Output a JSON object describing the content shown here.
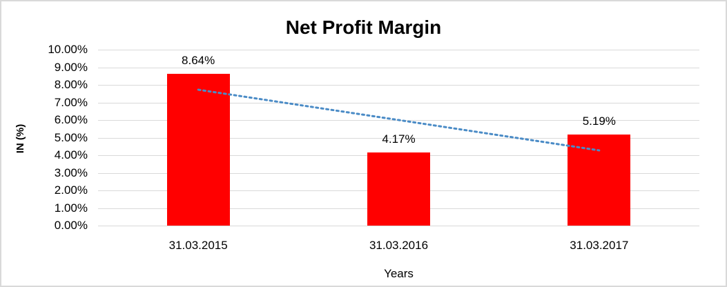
{
  "chart_data": {
    "type": "bar",
    "title": "Net Profit Margin",
    "xlabel": "Years",
    "ylabel": "IN (%)",
    "categories": [
      "31.03.2015",
      "31.03.2016",
      "31.03.2017"
    ],
    "values": [
      8.64,
      4.17,
      5.19
    ],
    "data_labels": [
      "8.64%",
      "4.17%",
      "5.19%"
    ],
    "ylim": [
      0,
      10
    ],
    "ytick_step": 1,
    "ytick_labels": [
      "0.00%",
      "1.00%",
      "2.00%",
      "3.00%",
      "4.00%",
      "5.00%",
      "6.00%",
      "7.00%",
      "8.00%",
      "9.00%",
      "10.00%"
    ],
    "grid": true,
    "legend": false,
    "trendline": {
      "type": "linear",
      "style": "dotted",
      "start_value": 7.725,
      "end_value": 4.275
    },
    "colors": {
      "bar": "#ff0000",
      "trendline": "#4a8bc6",
      "gridline": "#d9d9d9",
      "border": "#d9d9d9",
      "text": "#000000",
      "background": "#ffffff"
    }
  }
}
